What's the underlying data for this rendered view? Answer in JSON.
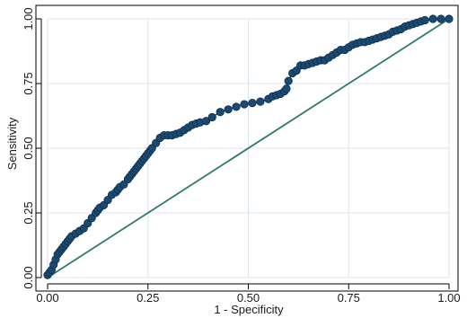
{
  "page": {
    "title": ""
  },
  "chart_data": {
    "type": "line",
    "title": "",
    "xlabel": "1 - Specificity",
    "ylabel": "Sensitivity",
    "xlim": [
      0,
      1
    ],
    "ylim": [
      0,
      1
    ],
    "x_ticks": [
      0,
      0.25,
      0.5,
      0.75,
      1
    ],
    "y_ticks": [
      0,
      0.25,
      0.5,
      0.75,
      1
    ],
    "x_tick_labels": [
      "0.00",
      "0.25",
      "0.50",
      "0.75",
      "1.00"
    ],
    "y_tick_labels": [
      "0.00",
      "0.25",
      "0.50",
      "0.75",
      "1.00"
    ],
    "grid": true,
    "legend": "none",
    "colors": {
      "roc_marker": "#1a4a72",
      "roc_marker_edge": "#0e2e4a",
      "roc_line": "#1a4a72",
      "reference_line": "#2e7b6b",
      "grid": "#dde6ec",
      "axis": "#000000"
    },
    "series": [
      {
        "type": "line-marker",
        "x": [
          0.0,
          0.005,
          0.01,
          0.015,
          0.02,
          0.025,
          0.03,
          0.035,
          0.04,
          0.045,
          0.05,
          0.055,
          0.06,
          0.07,
          0.08,
          0.09,
          0.1,
          0.11,
          0.12,
          0.125,
          0.13,
          0.14,
          0.15,
          0.16,
          0.17,
          0.175,
          0.18,
          0.19,
          0.2,
          0.205,
          0.21,
          0.215,
          0.22,
          0.225,
          0.23,
          0.235,
          0.24,
          0.245,
          0.25,
          0.255,
          0.26,
          0.27,
          0.28,
          0.29,
          0.3,
          0.31,
          0.32,
          0.33,
          0.34,
          0.35,
          0.36,
          0.37,
          0.38,
          0.395,
          0.41,
          0.43,
          0.45,
          0.47,
          0.49,
          0.51,
          0.53,
          0.55,
          0.56,
          0.57,
          0.58,
          0.59,
          0.595,
          0.6,
          0.61,
          0.62,
          0.63,
          0.64,
          0.65,
          0.66,
          0.67,
          0.68,
          0.69,
          0.7,
          0.71,
          0.72,
          0.73,
          0.74,
          0.75,
          0.76,
          0.77,
          0.78,
          0.79,
          0.8,
          0.81,
          0.82,
          0.83,
          0.84,
          0.85,
          0.86,
          0.87,
          0.88,
          0.89,
          0.9,
          0.91,
          0.92,
          0.93,
          0.94,
          0.96,
          0.98,
          1.0
        ],
        "y": [
          0.01,
          0.02,
          0.03,
          0.05,
          0.07,
          0.09,
          0.1,
          0.11,
          0.12,
          0.13,
          0.14,
          0.15,
          0.16,
          0.17,
          0.18,
          0.19,
          0.21,
          0.23,
          0.25,
          0.26,
          0.27,
          0.28,
          0.3,
          0.32,
          0.33,
          0.34,
          0.35,
          0.36,
          0.38,
          0.39,
          0.4,
          0.41,
          0.42,
          0.43,
          0.44,
          0.45,
          0.46,
          0.47,
          0.48,
          0.49,
          0.5,
          0.52,
          0.54,
          0.55,
          0.55,
          0.55,
          0.555,
          0.56,
          0.57,
          0.58,
          0.59,
          0.595,
          0.6,
          0.605,
          0.62,
          0.64,
          0.65,
          0.66,
          0.67,
          0.675,
          0.68,
          0.69,
          0.7,
          0.705,
          0.71,
          0.72,
          0.73,
          0.76,
          0.79,
          0.8,
          0.82,
          0.82,
          0.825,
          0.83,
          0.835,
          0.84,
          0.84,
          0.85,
          0.86,
          0.87,
          0.88,
          0.88,
          0.89,
          0.9,
          0.905,
          0.91,
          0.91,
          0.915,
          0.92,
          0.925,
          0.93,
          0.935,
          0.94,
          0.95,
          0.955,
          0.96,
          0.97,
          0.975,
          0.98,
          0.985,
          0.99,
          0.995,
          1.0,
          1.0,
          1.0
        ]
      },
      {
        "type": "reference",
        "x": [
          0,
          1
        ],
        "y": [
          0,
          1
        ]
      }
    ]
  }
}
